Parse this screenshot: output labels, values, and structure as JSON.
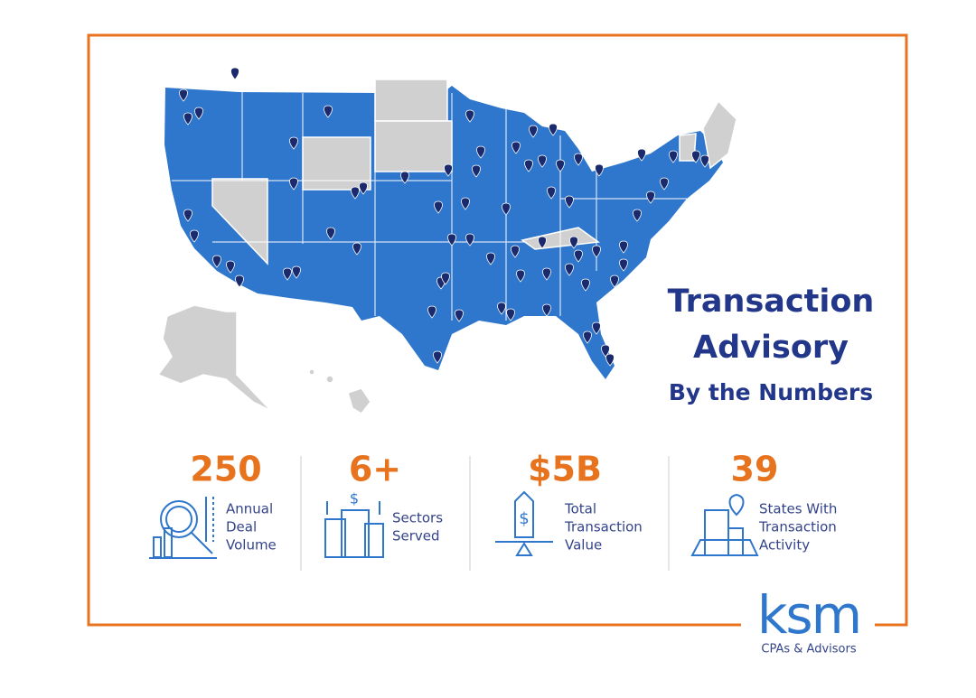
{
  "title": {
    "line1": "Transaction",
    "line2": "Advisory",
    "subtitle": "By the Numbers"
  },
  "stats": [
    {
      "value": "250",
      "label": [
        "Annual",
        "Deal",
        "Volume"
      ]
    },
    {
      "value": "6+",
      "label": [
        "Sectors",
        "Served"
      ]
    },
    {
      "value": "$5B",
      "label": [
        "Total",
        "Transaction",
        "Value"
      ]
    },
    {
      "value": "39",
      "label": [
        "States With",
        "Transaction",
        "Activity"
      ]
    }
  ],
  "logo": {
    "name": "ksm",
    "tagline": "CPAs & Advisors"
  }
}
